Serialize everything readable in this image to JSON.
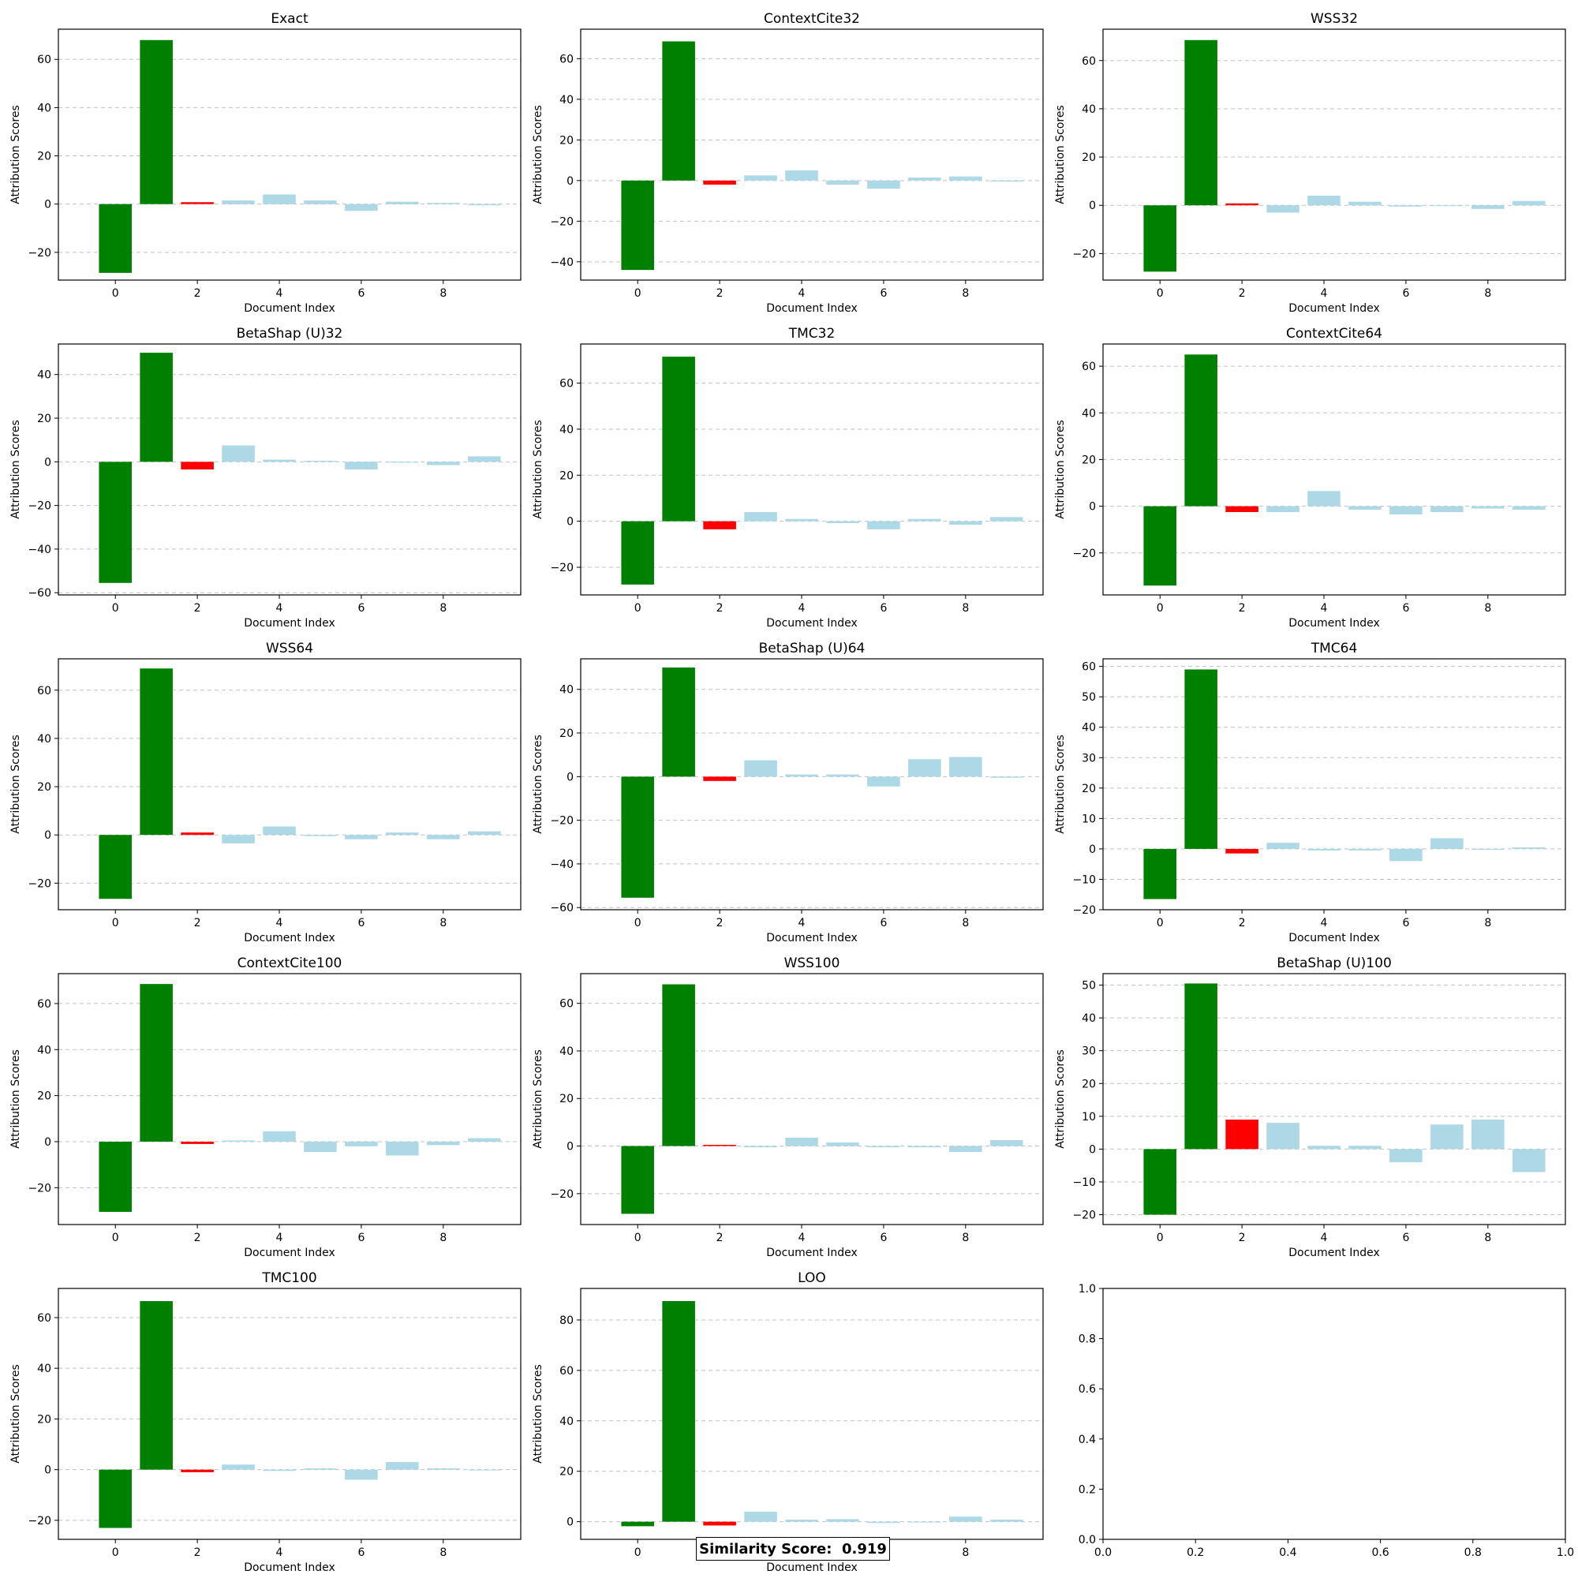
{
  "colors": {
    "positive_green": "#008000",
    "highlight_red": "#ff0000",
    "other_lightblue": "#add8e6",
    "grid": "#c0c0c0"
  },
  "chart_data": [
    {
      "type": "bar",
      "title": "Exact",
      "xlabel": "Document Index",
      "ylabel": "Attribution Scores",
      "categories": [
        0,
        1,
        2,
        3,
        4,
        5,
        6,
        7,
        8,
        9
      ],
      "values": [
        -28.5,
        68,
        0.8,
        1.5,
        4,
        1.5,
        -2.8,
        1,
        0.5,
        -0.5
      ],
      "ylim": [
        -31.5,
        72.5
      ],
      "yticks": [
        -20,
        0,
        20,
        40,
        60
      ],
      "xticks": [
        0,
        2,
        4,
        6,
        8
      ],
      "grid": "y-dashed"
    },
    {
      "type": "bar",
      "title": "ContextCite32",
      "xlabel": "Document Index",
      "ylabel": "Attribution Scores",
      "categories": [
        0,
        1,
        2,
        3,
        4,
        5,
        6,
        7,
        8,
        9
      ],
      "values": [
        -44,
        68.5,
        -2,
        2.5,
        5,
        -2,
        -4,
        1.5,
        2,
        -0.5
      ],
      "ylim": [
        -49,
        74.5
      ],
      "yticks": [
        -40,
        -20,
        0,
        20,
        40,
        60
      ],
      "xticks": [
        0,
        2,
        4,
        6,
        8
      ],
      "grid": "y-dashed"
    },
    {
      "type": "bar",
      "title": "WSS32",
      "xlabel": "Document Index",
      "ylabel": "Attribution Scores",
      "categories": [
        0,
        1,
        2,
        3,
        4,
        5,
        6,
        7,
        8,
        9
      ],
      "values": [
        -27.5,
        68.5,
        0.8,
        -3,
        4,
        1.5,
        -0.5,
        -0.2,
        -1.5,
        1.8
      ],
      "ylim": [
        -31,
        73
      ],
      "yticks": [
        -20,
        0,
        20,
        40,
        60
      ],
      "xticks": [
        0,
        2,
        4,
        6,
        8
      ],
      "grid": "y-dashed"
    },
    {
      "type": "bar",
      "title": "BetaShap (U)32",
      "xlabel": "Document Index",
      "ylabel": "Attribution Scores",
      "categories": [
        0,
        1,
        2,
        3,
        4,
        5,
        6,
        7,
        8,
        9
      ],
      "values": [
        -55.5,
        50,
        -3.5,
        7.5,
        1,
        0.5,
        -3.5,
        -0.3,
        -1.5,
        2.5
      ],
      "ylim": [
        -61,
        54
      ],
      "yticks": [
        -60,
        -40,
        -20,
        0,
        20,
        40
      ],
      "xticks": [
        0,
        2,
        4,
        6,
        8
      ],
      "grid": "y-dashed"
    },
    {
      "type": "bar",
      "title": "TMC32",
      "xlabel": "Document Index",
      "ylabel": "Attribution Scores",
      "categories": [
        0,
        1,
        2,
        3,
        4,
        5,
        6,
        7,
        8,
        9
      ],
      "values": [
        -27.5,
        71.5,
        -3.5,
        4,
        1,
        -0.8,
        -3.5,
        1,
        -1.5,
        1.8
      ],
      "ylim": [
        -32,
        77
      ],
      "yticks": [
        -20,
        0,
        20,
        40,
        60
      ],
      "xticks": [
        0,
        2,
        4,
        6,
        8
      ],
      "grid": "y-dashed"
    },
    {
      "type": "bar",
      "title": "ContextCite64",
      "xlabel": "Document Index",
      "ylabel": "Attribution Scores",
      "categories": [
        0,
        1,
        2,
        3,
        4,
        5,
        6,
        7,
        8,
        9
      ],
      "values": [
        -34,
        65,
        -2.5,
        -2.5,
        6.5,
        -1.5,
        -3.5,
        -2.5,
        -1,
        -1.5
      ],
      "ylim": [
        -38,
        69.5
      ],
      "yticks": [
        -20,
        0,
        20,
        40,
        60
      ],
      "xticks": [
        0,
        2,
        4,
        6,
        8
      ],
      "grid": "y-dashed"
    },
    {
      "type": "bar",
      "title": "WSS64",
      "xlabel": "Document Index",
      "ylabel": "Attribution Scores",
      "categories": [
        0,
        1,
        2,
        3,
        4,
        5,
        6,
        7,
        8,
        9
      ],
      "values": [
        -26.5,
        69,
        1,
        -3.5,
        3.5,
        -0.5,
        -1.8,
        1,
        -1.8,
        1.5
      ],
      "ylim": [
        -31,
        73
      ],
      "yticks": [
        -20,
        0,
        20,
        40,
        60
      ],
      "xticks": [
        0,
        2,
        4,
        6,
        8
      ],
      "grid": "y-dashed"
    },
    {
      "type": "bar",
      "title": "BetaShap (U)64",
      "xlabel": "Document Index",
      "ylabel": "Attribution Scores",
      "categories": [
        0,
        1,
        2,
        3,
        4,
        5,
        6,
        7,
        8,
        9
      ],
      "values": [
        -55.5,
        50,
        -2,
        7.5,
        1,
        1,
        -4.5,
        8,
        9,
        -0.5
      ],
      "ylim": [
        -61,
        54
      ],
      "yticks": [
        -60,
        -40,
        -20,
        0,
        20,
        40
      ],
      "xticks": [
        0,
        2,
        4,
        6,
        8
      ],
      "grid": "y-dashed"
    },
    {
      "type": "bar",
      "title": "TMC64",
      "xlabel": "Document Index",
      "ylabel": "Attribution Scores",
      "categories": [
        0,
        1,
        2,
        3,
        4,
        5,
        6,
        7,
        8,
        9
      ],
      "values": [
        -16.5,
        59,
        -1.5,
        2,
        -0.5,
        -0.5,
        -4,
        3.5,
        -0.3,
        0.5
      ],
      "ylim": [
        -20,
        62.5
      ],
      "yticks": [
        -20,
        -10,
        0,
        10,
        20,
        30,
        40,
        50,
        60
      ],
      "xticks": [
        0,
        2,
        4,
        6,
        8
      ],
      "grid": "y-dashed"
    },
    {
      "type": "bar",
      "title": "ContextCite100",
      "xlabel": "Document Index",
      "ylabel": "Attribution Scores",
      "categories": [
        0,
        1,
        2,
        3,
        4,
        5,
        6,
        7,
        8,
        9
      ],
      "values": [
        -30.5,
        68.5,
        -1,
        0.5,
        4.5,
        -4.5,
        -2,
        -6,
        -1.5,
        1.5
      ],
      "ylim": [
        -36,
        73
      ],
      "yticks": [
        -20,
        0,
        20,
        40,
        60
      ],
      "xticks": [
        0,
        2,
        4,
        6,
        8
      ],
      "grid": "y-dashed"
    },
    {
      "type": "bar",
      "title": "WSS100",
      "xlabel": "Document Index",
      "ylabel": "Attribution Scores",
      "categories": [
        0,
        1,
        2,
        3,
        4,
        5,
        6,
        7,
        8,
        9
      ],
      "values": [
        -28.5,
        68,
        0.5,
        -0.5,
        3.5,
        1.5,
        -0.5,
        -0.5,
        -2.5,
        2.5
      ],
      "ylim": [
        -33,
        72.5
      ],
      "yticks": [
        -20,
        0,
        20,
        40,
        60
      ],
      "xticks": [
        0,
        2,
        4,
        6,
        8
      ],
      "grid": "y-dashed"
    },
    {
      "type": "bar",
      "title": "BetaShap (U)100",
      "xlabel": "Document Index",
      "ylabel": "Attribution Scores",
      "categories": [
        0,
        1,
        2,
        3,
        4,
        5,
        6,
        7,
        8,
        9
      ],
      "values": [
        -20,
        50.5,
        9,
        8,
        1,
        1,
        -4,
        7.5,
        9,
        -7
      ],
      "ylim": [
        -23,
        53.5
      ],
      "yticks": [
        -20,
        -10,
        0,
        10,
        20,
        30,
        40,
        50
      ],
      "xticks": [
        0,
        2,
        4,
        6,
        8
      ],
      "grid": "y-dashed"
    },
    {
      "type": "bar",
      "title": "TMC100",
      "xlabel": "Document Index",
      "ylabel": "Attribution Scores",
      "categories": [
        0,
        1,
        2,
        3,
        4,
        5,
        6,
        7,
        8,
        9
      ],
      "values": [
        -23,
        66.5,
        -1,
        2,
        -0.5,
        0.5,
        -4,
        3,
        0.5,
        -0.2
      ],
      "ylim": [
        -27.5,
        71.5
      ],
      "yticks": [
        -20,
        0,
        20,
        40,
        60
      ],
      "xticks": [
        0,
        2,
        4,
        6,
        8
      ],
      "grid": "y-dashed"
    },
    {
      "type": "bar",
      "title": "LOO",
      "xlabel": "Document Index",
      "ylabel": "Attribution Scores",
      "categories": [
        0,
        1,
        2,
        3,
        4,
        5,
        6,
        7,
        8,
        9
      ],
      "values": [
        -1.8,
        87.5,
        -1.5,
        4,
        0.8,
        1,
        -0.5,
        -0.3,
        2,
        0.8
      ],
      "ylim": [
        -7,
        92.5
      ],
      "yticks": [
        0,
        20,
        40,
        60,
        80
      ],
      "xticks": [
        0,
        2,
        4,
        6,
        8
      ],
      "grid": "y-dashed"
    },
    {
      "type": "empty",
      "xlim": [
        0,
        1
      ],
      "ylim": [
        0,
        1
      ],
      "xticks": [
        0.0,
        0.2,
        0.4,
        0.6,
        0.8,
        1.0
      ],
      "yticks": [
        0.0,
        0.2,
        0.4,
        0.6,
        0.8,
        1.0
      ]
    }
  ],
  "similarity_score_label": "Similarity Score:  0.919"
}
